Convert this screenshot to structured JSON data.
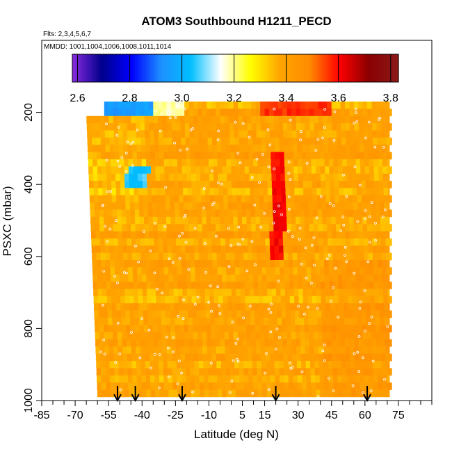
{
  "chart_data": {
    "type": "heatmap",
    "title": "ATOM3 Southbound H1211_PECD",
    "flights_label": "Flts: 2,3,4,5,6,7",
    "mmdd_label": "MMDD: 1001,1004,1006,1008,1011,1014",
    "xlabel": "Latitude (deg N)",
    "ylabel": "PSXC (mbar)",
    "xlim": [
      -85,
      90
    ],
    "ylim": [
      1000,
      0
    ],
    "x_ticks": [
      -85,
      -70,
      -55,
      -40,
      -25,
      -10,
      5,
      15,
      30,
      45,
      60,
      75
    ],
    "x_tick_labels": [
      "-85",
      "-70",
      "-55",
      "-40",
      "-25",
      "-10",
      "5",
      "15",
      "30",
      "45",
      "60",
      "75"
    ],
    "y_ticks": [
      200,
      400,
      600,
      800,
      1000
    ],
    "y_tick_labels": [
      "200",
      "400",
      "600",
      "800",
      "1000"
    ],
    "colorbar": {
      "min": 2.58,
      "max": 3.83,
      "ticks": [
        2.6,
        2.8,
        3.0,
        3.2,
        3.4,
        3.6,
        3.8
      ],
      "tick_labels": [
        "2.6",
        "2.8",
        "3.0",
        "3.2",
        "3.4",
        "3.6",
        "3.8"
      ],
      "colors": [
        "#8a2be2",
        "#00008b",
        "#0000ff",
        "#1e90ff",
        "#00bfff",
        "#ffffff",
        "#ffff00",
        "#ffa500",
        "#ff8c00",
        "#ff0000",
        "#8b0000",
        "#8b1a1a"
      ]
    },
    "profile_arrows_lat": [
      -51,
      -43,
      -22,
      20,
      61
    ],
    "field": {
      "lat_range": [
        -65,
        71
      ],
      "p_range": [
        170,
        990
      ],
      "base_value": 3.38,
      "regions": [
        {
          "lat": [
            -57,
            -35
          ],
          "p": [
            170,
            205
          ],
          "value": 2.95,
          "label": "upper-tropo-south-blue"
        },
        {
          "lat": [
            -35,
            -22
          ],
          "p": [
            170,
            205
          ],
          "value": 3.18,
          "label": "upper-tropo-south-white"
        },
        {
          "lat": [
            12,
            45
          ],
          "p": [
            170,
            220
          ],
          "value": 3.56,
          "label": "upper-tropo-north-red"
        },
        {
          "lat": [
            17,
            23
          ],
          "p": [
            320,
            620
          ],
          "value": 3.6,
          "label": "tropical-column-red"
        },
        {
          "lat": [
            -48,
            -38
          ],
          "p": [
            360,
            420
          ],
          "value": 3.05,
          "label": "mid-south-blue"
        }
      ]
    }
  }
}
